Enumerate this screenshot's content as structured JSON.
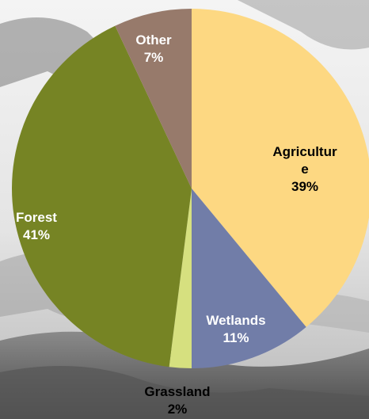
{
  "chart_data": {
    "type": "pie",
    "title": "",
    "slices": [
      {
        "label": "Agriculture",
        "label_lines": [
          "Agricultur",
          "e"
        ],
        "value": 39,
        "value_text": "39%",
        "color": "#fdd882",
        "label_color": "#000000"
      },
      {
        "label": "Wetlands",
        "label_lines": [
          "Wetlands"
        ],
        "value": 11,
        "value_text": "11%",
        "color": "#717da8",
        "label_color": "#ffffff"
      },
      {
        "label": "Grassland",
        "label_lines": [
          "Grassland"
        ],
        "value": 2,
        "value_text": "2%",
        "color": "#d6e07f",
        "label_color": "#000000"
      },
      {
        "label": "Forest",
        "label_lines": [
          "Forest"
        ],
        "value": 41,
        "value_text": "41%",
        "color": "#768424",
        "label_color": "#ffffff"
      },
      {
        "label": "Other",
        "label_lines": [
          "Other"
        ],
        "value": 7,
        "value_text": "7%",
        "color": "#977a6b",
        "label_color": "#ffffff"
      }
    ],
    "legend": "none"
  },
  "background": {
    "style": "grayscale-photo",
    "sky_color": "#f2f2f2",
    "land_color": "#6f6f6f"
  }
}
